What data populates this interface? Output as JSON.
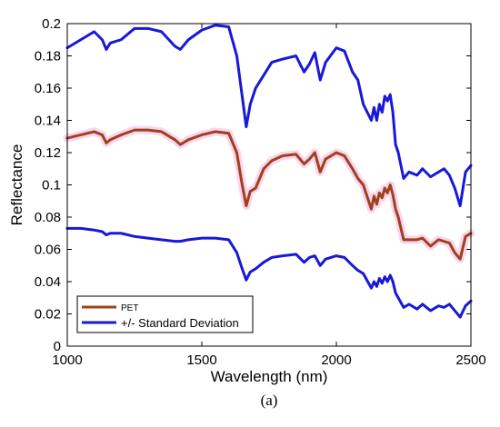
{
  "chart_data": {
    "type": "line",
    "title": "",
    "xlabel": "Wavelength (nm)",
    "ylabel": "Reflectance",
    "panel_label": "(a)",
    "xlim": [
      1000,
      2500
    ],
    "ylim": [
      0,
      0.2
    ],
    "xticks": [
      1000,
      1500,
      2000,
      2500
    ],
    "yticks": [
      0,
      0.02,
      0.04,
      0.06,
      0.08,
      0.1,
      0.12,
      0.14,
      0.16,
      0.18,
      0.2
    ],
    "ytick_labels": [
      "0",
      "0.02",
      "0.04",
      "0.06",
      "0.08",
      "0.1",
      "0.12",
      "0.14",
      "0.16",
      "0.18",
      "0.2"
    ],
    "grid": false,
    "legend_position": "bottom-left",
    "legend": [
      "PET",
      "+/- Standard Deviation"
    ],
    "colors": {
      "mean": "#a0401c",
      "std": "#1818d8",
      "band": "#f6c8e8"
    },
    "series": [
      {
        "name": "PET",
        "role": "mean",
        "x": [
          1000,
          1050,
          1100,
          1130,
          1145,
          1160,
          1200,
          1250,
          1300,
          1350,
          1400,
          1420,
          1450,
          1500,
          1550,
          1600,
          1630,
          1650,
          1665,
          1680,
          1700,
          1730,
          1760,
          1800,
          1850,
          1880,
          1900,
          1920,
          1940,
          1960,
          2000,
          2030,
          2060,
          2080,
          2100,
          2130,
          2140,
          2150,
          2160,
          2170,
          2180,
          2190,
          2200,
          2210,
          2220,
          2230,
          2250,
          2270,
          2300,
          2320,
          2350,
          2380,
          2400,
          2420,
          2440,
          2460,
          2480,
          2500
        ],
        "y": [
          0.129,
          0.131,
          0.133,
          0.131,
          0.126,
          0.128,
          0.131,
          0.134,
          0.134,
          0.133,
          0.128,
          0.125,
          0.128,
          0.131,
          0.133,
          0.132,
          0.12,
          0.1,
          0.087,
          0.096,
          0.098,
          0.11,
          0.115,
          0.118,
          0.119,
          0.113,
          0.116,
          0.12,
          0.108,
          0.116,
          0.12,
          0.118,
          0.11,
          0.104,
          0.1,
          0.085,
          0.093,
          0.088,
          0.095,
          0.092,
          0.098,
          0.095,
          0.1,
          0.094,
          0.085,
          0.08,
          0.066,
          0.066,
          0.066,
          0.067,
          0.062,
          0.066,
          0.065,
          0.064,
          0.058,
          0.054,
          0.068,
          0.07
        ]
      },
      {
        "name": "+/- Standard Deviation",
        "role": "upper",
        "x": [
          1000,
          1050,
          1100,
          1130,
          1145,
          1160,
          1200,
          1250,
          1300,
          1350,
          1400,
          1420,
          1450,
          1500,
          1550,
          1600,
          1630,
          1650,
          1665,
          1680,
          1700,
          1730,
          1760,
          1800,
          1850,
          1880,
          1900,
          1920,
          1940,
          1960,
          2000,
          2030,
          2060,
          2080,
          2100,
          2130,
          2140,
          2150,
          2160,
          2170,
          2180,
          2190,
          2200,
          2210,
          2220,
          2230,
          2250,
          2270,
          2300,
          2320,
          2350,
          2380,
          2400,
          2420,
          2440,
          2460,
          2480,
          2500
        ],
        "y": [
          0.185,
          0.19,
          0.195,
          0.19,
          0.184,
          0.188,
          0.19,
          0.197,
          0.197,
          0.195,
          0.186,
          0.184,
          0.19,
          0.196,
          0.199,
          0.198,
          0.18,
          0.155,
          0.136,
          0.15,
          0.16,
          0.168,
          0.176,
          0.178,
          0.18,
          0.17,
          0.175,
          0.182,
          0.165,
          0.176,
          0.185,
          0.183,
          0.17,
          0.165,
          0.15,
          0.14,
          0.148,
          0.14,
          0.15,
          0.145,
          0.155,
          0.152,
          0.156,
          0.145,
          0.125,
          0.12,
          0.104,
          0.108,
          0.106,
          0.11,
          0.105,
          0.108,
          0.11,
          0.106,
          0.098,
          0.087,
          0.108,
          0.112
        ]
      },
      {
        "name": "+/- Standard Deviation",
        "role": "lower",
        "x": [
          1000,
          1050,
          1100,
          1130,
          1145,
          1160,
          1200,
          1250,
          1300,
          1350,
          1400,
          1420,
          1450,
          1500,
          1550,
          1600,
          1630,
          1650,
          1665,
          1680,
          1700,
          1730,
          1760,
          1800,
          1850,
          1880,
          1900,
          1920,
          1940,
          1960,
          2000,
          2030,
          2060,
          2080,
          2100,
          2130,
          2140,
          2150,
          2160,
          2170,
          2180,
          2190,
          2200,
          2210,
          2220,
          2230,
          2250,
          2270,
          2300,
          2320,
          2350,
          2380,
          2400,
          2420,
          2440,
          2460,
          2480,
          2500
        ],
        "y": [
          0.073,
          0.073,
          0.072,
          0.071,
          0.069,
          0.07,
          0.07,
          0.068,
          0.067,
          0.066,
          0.065,
          0.065,
          0.066,
          0.067,
          0.067,
          0.066,
          0.058,
          0.048,
          0.041,
          0.046,
          0.048,
          0.052,
          0.055,
          0.056,
          0.057,
          0.052,
          0.055,
          0.056,
          0.05,
          0.054,
          0.056,
          0.055,
          0.05,
          0.047,
          0.045,
          0.036,
          0.04,
          0.037,
          0.042,
          0.039,
          0.043,
          0.04,
          0.044,
          0.04,
          0.033,
          0.03,
          0.024,
          0.026,
          0.023,
          0.026,
          0.022,
          0.025,
          0.024,
          0.026,
          0.022,
          0.018,
          0.025,
          0.028
        ]
      }
    ]
  }
}
